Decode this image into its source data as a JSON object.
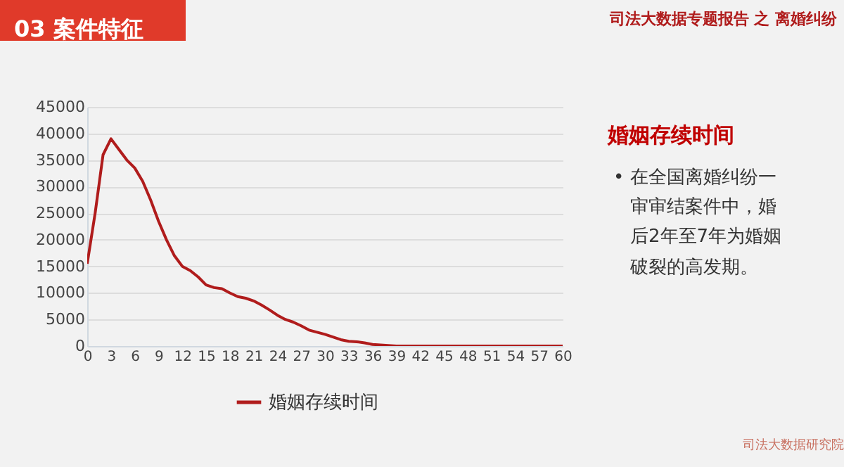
{
  "chart_data": {
    "type": "line",
    "x": [
      0,
      1,
      2,
      3,
      4,
      5,
      6,
      7,
      8,
      9,
      10,
      11,
      12,
      13,
      14,
      15,
      16,
      17,
      18,
      19,
      20,
      21,
      22,
      23,
      24,
      25,
      26,
      27,
      28,
      29,
      30,
      31,
      32,
      33,
      34,
      35,
      36,
      37,
      38,
      39,
      40,
      42,
      45,
      48,
      51,
      54,
      57,
      60
    ],
    "series": [
      {
        "name": "婚姻存续时间",
        "color": "#b01c1c",
        "values": [
          15500,
          25000,
          36000,
          39000,
          37000,
          35000,
          33500,
          31000,
          27500,
          23500,
          20000,
          17000,
          15000,
          14200,
          13000,
          11500,
          11000,
          10800,
          10000,
          9300,
          9000,
          8500,
          7700,
          6800,
          5800,
          5000,
          4500,
          3800,
          3000,
          2600,
          2200,
          1700,
          1200,
          900,
          800,
          600,
          300,
          200,
          100,
          0,
          0,
          0,
          0,
          0,
          0,
          0,
          0,
          0
        ]
      }
    ],
    "xlim": [
      0,
      60
    ],
    "xticks": [
      0,
      3,
      6,
      9,
      12,
      15,
      18,
      21,
      24,
      27,
      30,
      33,
      36,
      39,
      42,
      45,
      48,
      51,
      54,
      57,
      60
    ],
    "ylim": [
      0,
      45000
    ],
    "yticks": [
      0,
      5000,
      10000,
      15000,
      20000,
      25000,
      30000,
      35000,
      40000,
      45000
    ],
    "grid": "y",
    "legend": "bottom",
    "marker": "none",
    "line_style": "solid",
    "annotations": [
      "03  案件特征",
      "司法大数据专题报告 之 离婚纠纷",
      "婚姻存续时间",
      "• 在全国离婚纠纷一",
      "审审结案件中，婚",
      "后2年至7年为婚姻",
      "破裂的高发期。",
      "司法大数据研究院"
    ]
  }
}
